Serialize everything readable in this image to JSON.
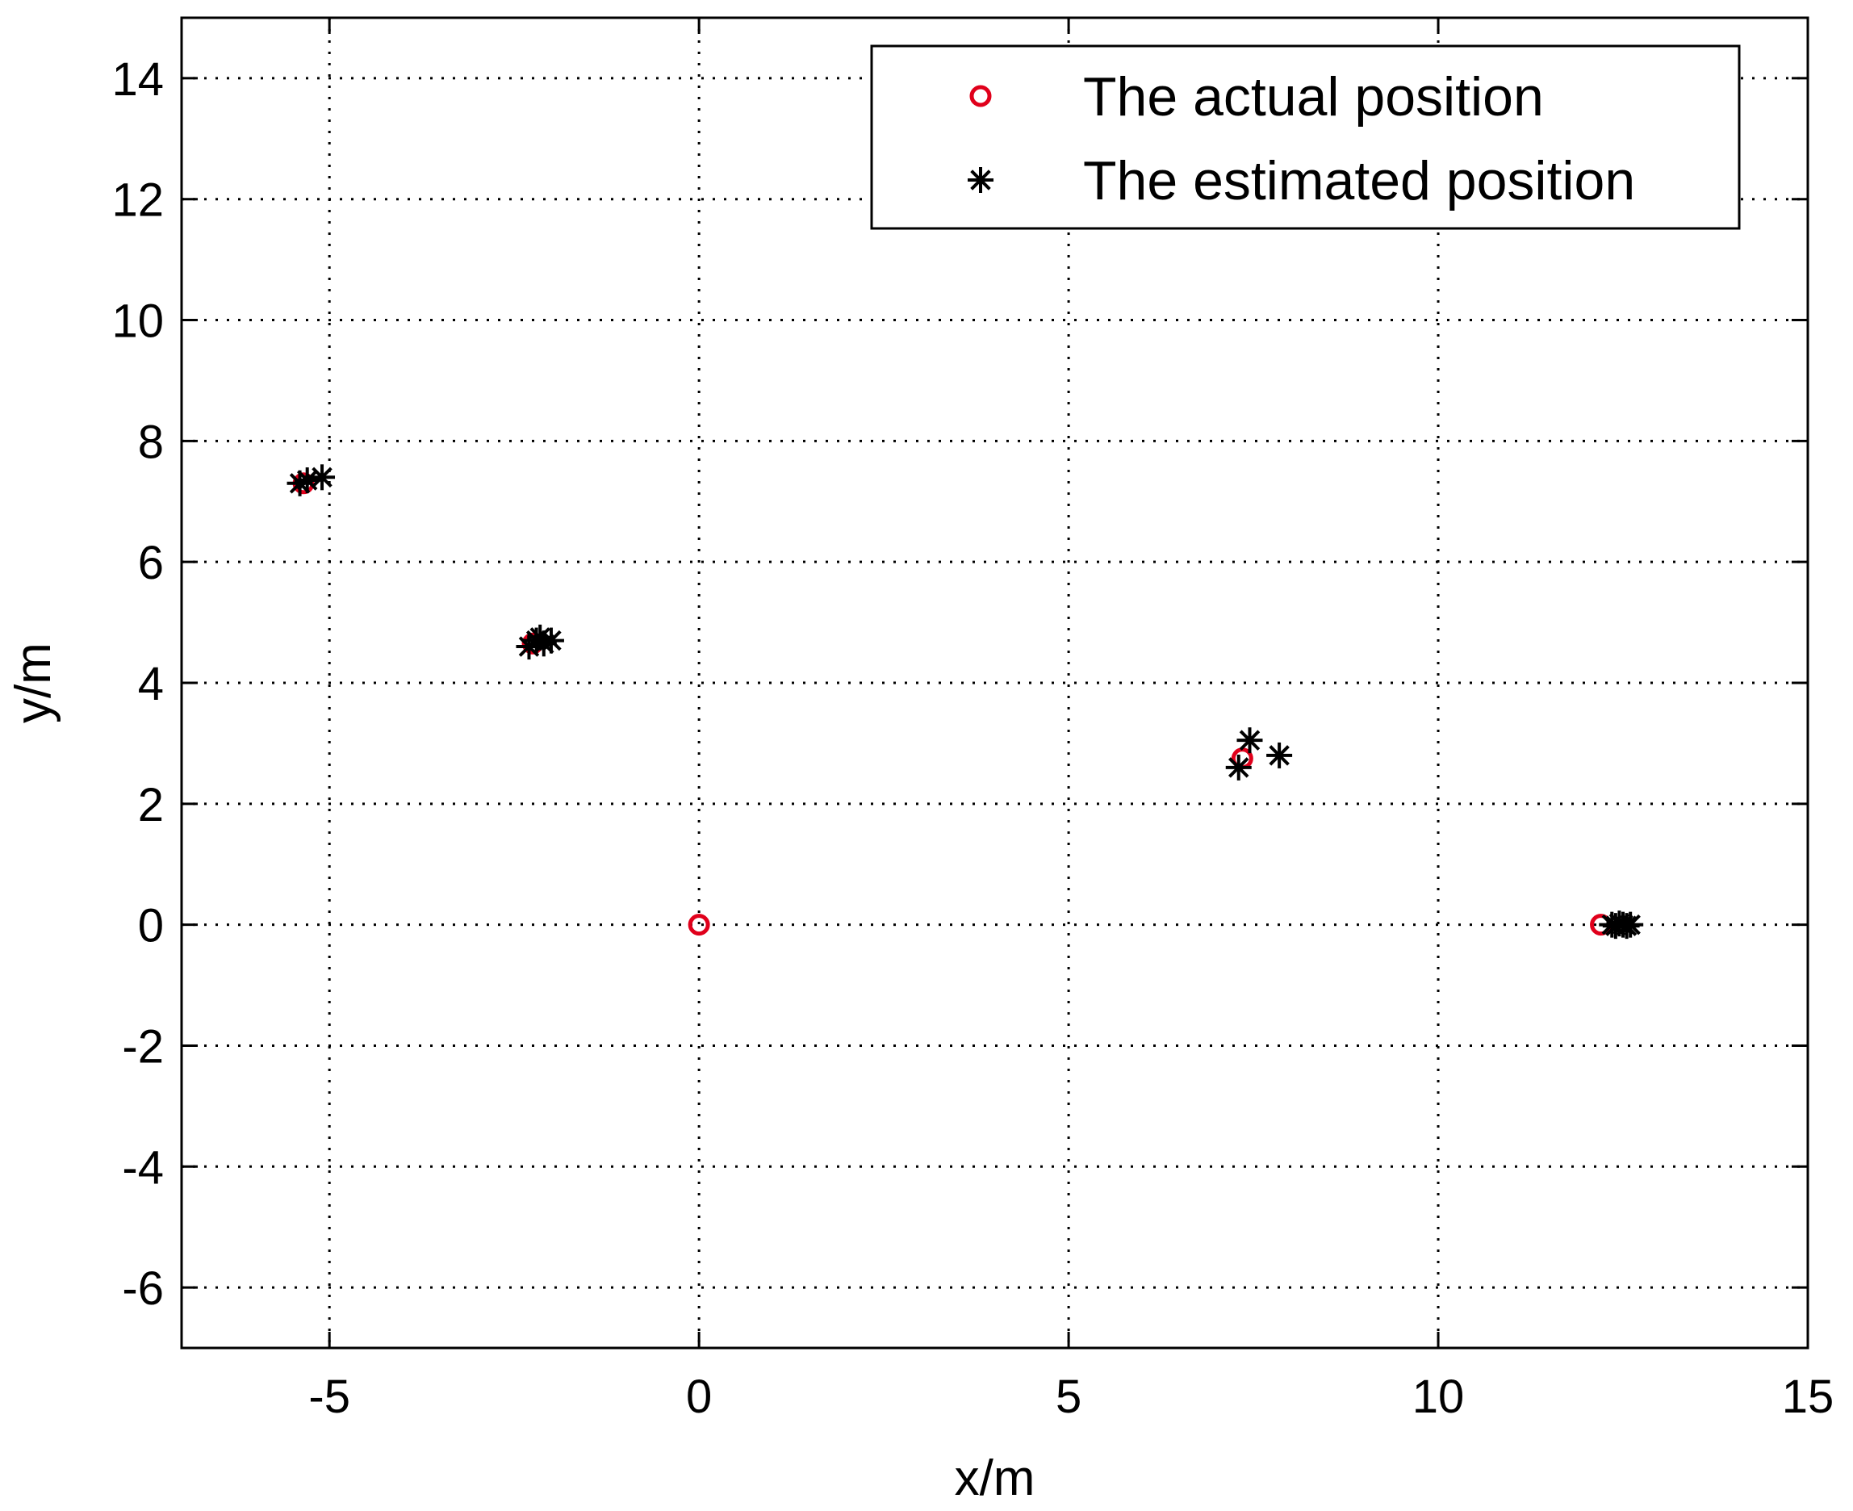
{
  "chart_data": {
    "type": "scatter",
    "title": "",
    "xlabel": "x/m",
    "ylabel": "y/m",
    "xlim": [
      -7,
      15
    ],
    "ylim": [
      -7,
      15
    ],
    "xticks": [
      -5,
      0,
      5,
      10,
      15
    ],
    "yticks": [
      -6,
      -4,
      -2,
      0,
      2,
      4,
      6,
      8,
      10,
      12,
      14
    ],
    "xtick_labels": [
      "-5",
      "0",
      "5",
      "10",
      "15"
    ],
    "ytick_labels": [
      "-6",
      "-4",
      "-2",
      "0",
      "2",
      "4",
      "6",
      "8",
      "10",
      "12",
      "14"
    ],
    "grid": true,
    "legend_position": "top-right",
    "series": [
      {
        "name": "The actual position",
        "marker": "circle",
        "color": "#e0001b",
        "points": [
          {
            "x": 0.0,
            "y": 0.0
          },
          {
            "x": 12.2,
            "y": 0.0
          },
          {
            "x": 7.35,
            "y": 2.75
          },
          {
            "x": -2.25,
            "y": 4.65
          },
          {
            "x": -5.35,
            "y": 7.3
          }
        ]
      },
      {
        "name": "The estimated position",
        "marker": "asterisk",
        "color": "#000000",
        "points": [
          {
            "x": -5.4,
            "y": 7.3
          },
          {
            "x": -5.3,
            "y": 7.35
          },
          {
            "x": -5.1,
            "y": 7.4
          },
          {
            "x": -2.3,
            "y": 4.6
          },
          {
            "x": -2.2,
            "y": 4.7
          },
          {
            "x": -2.1,
            "y": 4.65
          },
          {
            "x": -2.15,
            "y": 4.75
          },
          {
            "x": -2.0,
            "y": 4.7
          },
          {
            "x": 7.3,
            "y": 2.6
          },
          {
            "x": 7.45,
            "y": 3.05
          },
          {
            "x": 7.85,
            "y": 2.8
          },
          {
            "x": 12.35,
            "y": 0.0
          },
          {
            "x": 12.4,
            "y": -0.02
          },
          {
            "x": 12.45,
            "y": 0.02
          },
          {
            "x": 12.5,
            "y": 0.0
          },
          {
            "x": 12.55,
            "y": -0.02
          },
          {
            "x": 12.6,
            "y": 0.0
          }
        ]
      }
    ]
  }
}
